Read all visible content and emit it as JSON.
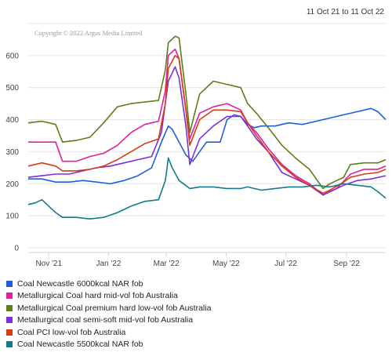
{
  "header": {
    "date_range": "11 Oct 21 to 11 Oct 22"
  },
  "copyright": "Copyright © 2022 Argus Media Limited",
  "chart_data": {
    "type": "line",
    "title": "",
    "xlabel": "",
    "ylabel": "",
    "x_start": "2021-10-11",
    "x_end": "2022-10-11",
    "x_ticks": [
      {
        "date": "2021-11-01",
        "label": "Nov '21"
      },
      {
        "date": "2022-01-01",
        "label": "Jan '22"
      },
      {
        "date": "2022-03-01",
        "label": "Mar '22"
      },
      {
        "date": "2022-05-01",
        "label": "May '22"
      },
      {
        "date": "2022-07-01",
        "label": "Jul '22"
      },
      {
        "date": "2022-09-01",
        "label": "Sep '22"
      }
    ],
    "ylim": [
      0,
      700
    ],
    "y_ticks": [
      0,
      100,
      200,
      300,
      400,
      500,
      600
    ],
    "grid": true,
    "legend_position": "bottom-left",
    "series": [
      {
        "name": "Coal Newcastle 6000kcal NAR fob",
        "color": "#1f5fd6",
        "points": [
          [
            "2021-10-11",
            215
          ],
          [
            "2021-10-25",
            215
          ],
          [
            "2021-11-08",
            205
          ],
          [
            "2021-11-22",
            205
          ],
          [
            "2021-12-06",
            210
          ],
          [
            "2021-12-20",
            205
          ],
          [
            "2022-01-03",
            200
          ],
          [
            "2022-01-17",
            210
          ],
          [
            "2022-01-31",
            225
          ],
          [
            "2022-02-14",
            250
          ],
          [
            "2022-02-24",
            330
          ],
          [
            "2022-03-03",
            380
          ],
          [
            "2022-03-07",
            370
          ],
          [
            "2022-03-14",
            330
          ],
          [
            "2022-03-21",
            290
          ],
          [
            "2022-03-28",
            270
          ],
          [
            "2022-04-04",
            300
          ],
          [
            "2022-04-11",
            330
          ],
          [
            "2022-04-25",
            330
          ],
          [
            "2022-05-02",
            400
          ],
          [
            "2022-05-09",
            415
          ],
          [
            "2022-05-16",
            410
          ],
          [
            "2022-05-23",
            385
          ],
          [
            "2022-05-30",
            375
          ],
          [
            "2022-06-06",
            380
          ],
          [
            "2022-06-20",
            380
          ],
          [
            "2022-07-04",
            390
          ],
          [
            "2022-07-18",
            385
          ],
          [
            "2022-08-01",
            395
          ],
          [
            "2022-08-15",
            405
          ],
          [
            "2022-08-29",
            415
          ],
          [
            "2022-09-12",
            425
          ],
          [
            "2022-09-26",
            435
          ],
          [
            "2022-10-03",
            425
          ],
          [
            "2022-10-11",
            400
          ]
        ]
      },
      {
        "name": "Metallurgical Coal hard mid-vol fob Australia",
        "color": "#e01e9e",
        "points": [
          [
            "2021-10-11",
            330
          ],
          [
            "2021-10-25",
            330
          ],
          [
            "2021-11-08",
            330
          ],
          [
            "2021-11-15",
            270
          ],
          [
            "2021-11-29",
            270
          ],
          [
            "2021-12-13",
            285
          ],
          [
            "2021-12-27",
            295
          ],
          [
            "2022-01-10",
            320
          ],
          [
            "2022-01-24",
            360
          ],
          [
            "2022-02-07",
            385
          ],
          [
            "2022-02-21",
            395
          ],
          [
            "2022-02-28",
            490
          ],
          [
            "2022-03-03",
            600
          ],
          [
            "2022-03-10",
            620
          ],
          [
            "2022-03-14",
            590
          ],
          [
            "2022-03-21",
            430
          ],
          [
            "2022-03-25",
            340
          ],
          [
            "2022-04-04",
            420
          ],
          [
            "2022-04-18",
            440
          ],
          [
            "2022-05-02",
            450
          ],
          [
            "2022-05-16",
            430
          ],
          [
            "2022-05-23",
            390
          ],
          [
            "2022-06-01",
            360
          ],
          [
            "2022-06-13",
            310
          ],
          [
            "2022-06-27",
            260
          ],
          [
            "2022-07-11",
            225
          ],
          [
            "2022-07-25",
            200
          ],
          [
            "2022-08-08",
            165
          ],
          [
            "2022-08-15",
            175
          ],
          [
            "2022-08-22",
            185
          ],
          [
            "2022-09-05",
            230
          ],
          [
            "2022-09-19",
            245
          ],
          [
            "2022-10-03",
            245
          ],
          [
            "2022-10-11",
            255
          ]
        ]
      },
      {
        "name": "Metallurgical Coal premium hard low-vol fob Australia",
        "color": "#5c7f17",
        "points": [
          [
            "2021-10-11",
            390
          ],
          [
            "2021-10-25",
            395
          ],
          [
            "2021-11-08",
            385
          ],
          [
            "2021-11-15",
            330
          ],
          [
            "2021-11-29",
            335
          ],
          [
            "2021-12-13",
            345
          ],
          [
            "2021-12-27",
            390
          ],
          [
            "2022-01-10",
            440
          ],
          [
            "2022-01-24",
            450
          ],
          [
            "2022-02-07",
            455
          ],
          [
            "2022-02-21",
            460
          ],
          [
            "2022-02-28",
            555
          ],
          [
            "2022-03-03",
            640
          ],
          [
            "2022-03-10",
            660
          ],
          [
            "2022-03-14",
            655
          ],
          [
            "2022-03-21",
            480
          ],
          [
            "2022-03-25",
            360
          ],
          [
            "2022-04-04",
            480
          ],
          [
            "2022-04-18",
            520
          ],
          [
            "2022-05-02",
            510
          ],
          [
            "2022-05-16",
            500
          ],
          [
            "2022-05-23",
            450
          ],
          [
            "2022-06-01",
            420
          ],
          [
            "2022-06-13",
            375
          ],
          [
            "2022-06-27",
            320
          ],
          [
            "2022-07-11",
            280
          ],
          [
            "2022-07-25",
            245
          ],
          [
            "2022-08-08",
            185
          ],
          [
            "2022-08-15",
            200
          ],
          [
            "2022-08-29",
            220
          ],
          [
            "2022-09-05",
            260
          ],
          [
            "2022-09-19",
            265
          ],
          [
            "2022-10-03",
            265
          ],
          [
            "2022-10-11",
            275
          ]
        ]
      },
      {
        "name": "Metallurgical coal semi-soft mid-vol fob Australia",
        "color": "#7b2fd8",
        "points": [
          [
            "2021-10-11",
            220
          ],
          [
            "2021-10-25",
            225
          ],
          [
            "2021-11-08",
            230
          ],
          [
            "2021-11-22",
            230
          ],
          [
            "2021-12-06",
            240
          ],
          [
            "2021-12-20",
            250
          ],
          [
            "2022-01-03",
            255
          ],
          [
            "2022-01-17",
            265
          ],
          [
            "2022-01-31",
            275
          ],
          [
            "2022-02-14",
            285
          ],
          [
            "2022-02-24",
            360
          ],
          [
            "2022-03-03",
            520
          ],
          [
            "2022-03-10",
            565
          ],
          [
            "2022-03-14",
            530
          ],
          [
            "2022-03-21",
            380
          ],
          [
            "2022-03-25",
            260
          ],
          [
            "2022-04-04",
            340
          ],
          [
            "2022-04-18",
            380
          ],
          [
            "2022-05-02",
            410
          ],
          [
            "2022-05-16",
            410
          ],
          [
            "2022-05-23",
            380
          ],
          [
            "2022-06-01",
            340
          ],
          [
            "2022-06-13",
            300
          ],
          [
            "2022-06-27",
            235
          ],
          [
            "2022-07-11",
            215
          ],
          [
            "2022-07-25",
            195
          ],
          [
            "2022-08-08",
            165
          ],
          [
            "2022-08-15",
            175
          ],
          [
            "2022-08-29",
            195
          ],
          [
            "2022-09-12",
            210
          ],
          [
            "2022-09-26",
            215
          ],
          [
            "2022-10-11",
            225
          ]
        ]
      },
      {
        "name": "Coal PCI low-vol fob Australia",
        "color": "#d63c12",
        "points": [
          [
            "2021-10-11",
            255
          ],
          [
            "2021-10-25",
            265
          ],
          [
            "2021-11-08",
            255
          ],
          [
            "2021-11-15",
            240
          ],
          [
            "2021-11-29",
            240
          ],
          [
            "2021-12-13",
            245
          ],
          [
            "2021-12-27",
            255
          ],
          [
            "2022-01-10",
            275
          ],
          [
            "2022-01-24",
            300
          ],
          [
            "2022-02-07",
            325
          ],
          [
            "2022-02-21",
            340
          ],
          [
            "2022-02-28",
            450
          ],
          [
            "2022-03-03",
            560
          ],
          [
            "2022-03-10",
            600
          ],
          [
            "2022-03-14",
            590
          ],
          [
            "2022-03-21",
            430
          ],
          [
            "2022-03-25",
            320
          ],
          [
            "2022-04-04",
            400
          ],
          [
            "2022-04-18",
            430
          ],
          [
            "2022-05-02",
            430
          ],
          [
            "2022-05-16",
            425
          ],
          [
            "2022-05-23",
            390
          ],
          [
            "2022-06-01",
            350
          ],
          [
            "2022-06-13",
            300
          ],
          [
            "2022-06-27",
            255
          ],
          [
            "2022-07-11",
            220
          ],
          [
            "2022-07-25",
            195
          ],
          [
            "2022-08-08",
            170
          ],
          [
            "2022-08-15",
            180
          ],
          [
            "2022-08-29",
            205
          ],
          [
            "2022-09-05",
            220
          ],
          [
            "2022-09-19",
            230
          ],
          [
            "2022-10-03",
            235
          ],
          [
            "2022-10-11",
            245
          ]
        ]
      },
      {
        "name": "Coal Newcastle 5500kcal NAR fob",
        "color": "#137b8a",
        "points": [
          [
            "2021-10-11",
            135
          ],
          [
            "2021-10-18",
            140
          ],
          [
            "2021-10-25",
            150
          ],
          [
            "2021-11-01",
            130
          ],
          [
            "2021-11-08",
            110
          ],
          [
            "2021-11-15",
            95
          ],
          [
            "2021-11-29",
            95
          ],
          [
            "2021-12-13",
            90
          ],
          [
            "2021-12-27",
            95
          ],
          [
            "2022-01-10",
            110
          ],
          [
            "2022-01-24",
            130
          ],
          [
            "2022-02-07",
            145
          ],
          [
            "2022-02-21",
            150
          ],
          [
            "2022-02-28",
            210
          ],
          [
            "2022-03-03",
            280
          ],
          [
            "2022-03-07",
            250
          ],
          [
            "2022-03-14",
            210
          ],
          [
            "2022-03-25",
            185
          ],
          [
            "2022-04-04",
            190
          ],
          [
            "2022-04-18",
            190
          ],
          [
            "2022-05-02",
            185
          ],
          [
            "2022-05-16",
            185
          ],
          [
            "2022-05-23",
            190
          ],
          [
            "2022-06-06",
            180
          ],
          [
            "2022-06-20",
            185
          ],
          [
            "2022-07-04",
            190
          ],
          [
            "2022-07-18",
            190
          ],
          [
            "2022-08-01",
            195
          ],
          [
            "2022-08-15",
            190
          ],
          [
            "2022-08-29",
            200
          ],
          [
            "2022-09-12",
            195
          ],
          [
            "2022-09-26",
            190
          ],
          [
            "2022-10-03",
            175
          ],
          [
            "2022-10-11",
            155
          ]
        ]
      }
    ]
  }
}
